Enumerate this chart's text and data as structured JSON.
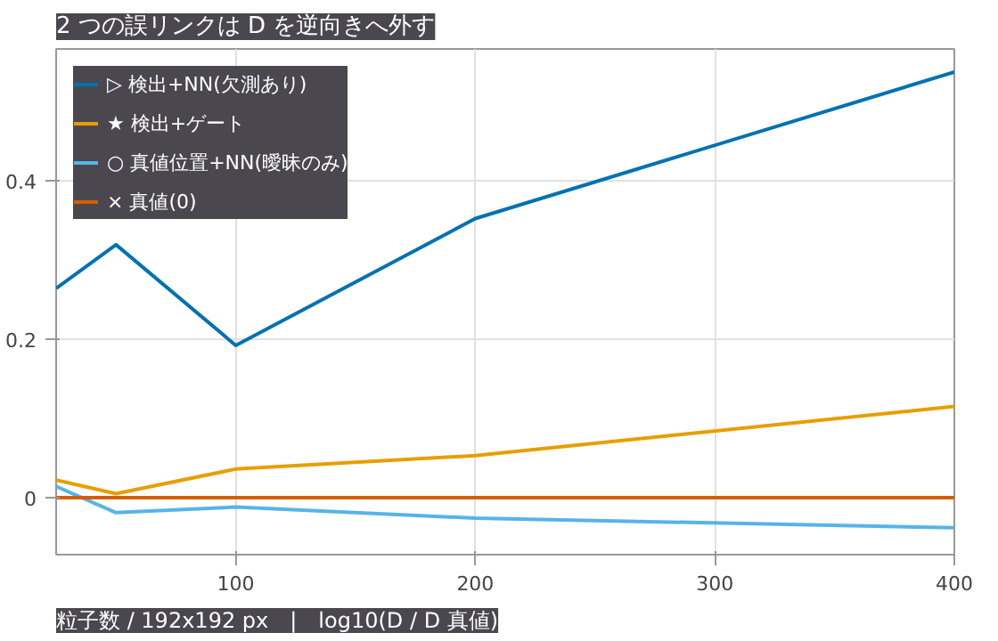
{
  "chart_data": {
    "type": "line",
    "title": "2 つの誤リンクは D を逆向きへ外す",
    "annotations": [
      "粒子数 / 192x192 px　|　log10(D / D 真値)"
    ],
    "x": [
      25,
      50,
      100,
      200,
      400
    ],
    "series": [
      {
        "name": "▷ 検出+NN(欠測あり)",
        "color": "#0072b2",
        "values": [
          0.264,
          0.319,
          0.192,
          0.352,
          0.537
        ]
      },
      {
        "name": "★ 検出+ゲート",
        "color": "#e69f00",
        "values": [
          0.022,
          0.005,
          0.036,
          0.053,
          0.115
        ]
      },
      {
        "name": "○ 真値位置+NN(曖昧のみ)",
        "color": "#56b4e9",
        "values": [
          0.014,
          -0.019,
          -0.012,
          -0.026,
          -0.038
        ]
      },
      {
        "name": "× 真値(0)",
        "color": "#d55e00",
        "values": [
          0,
          0,
          0,
          0,
          0
        ]
      }
    ],
    "xlim": [
      25,
      400
    ],
    "ylim": [
      -0.072,
      0.566
    ],
    "xticks": [
      100,
      200,
      300,
      400
    ],
    "yticks": [
      0,
      0.2,
      0.4
    ],
    "grid": true,
    "legend": "top left",
    "marker": "none",
    "line_style": "solid"
  }
}
